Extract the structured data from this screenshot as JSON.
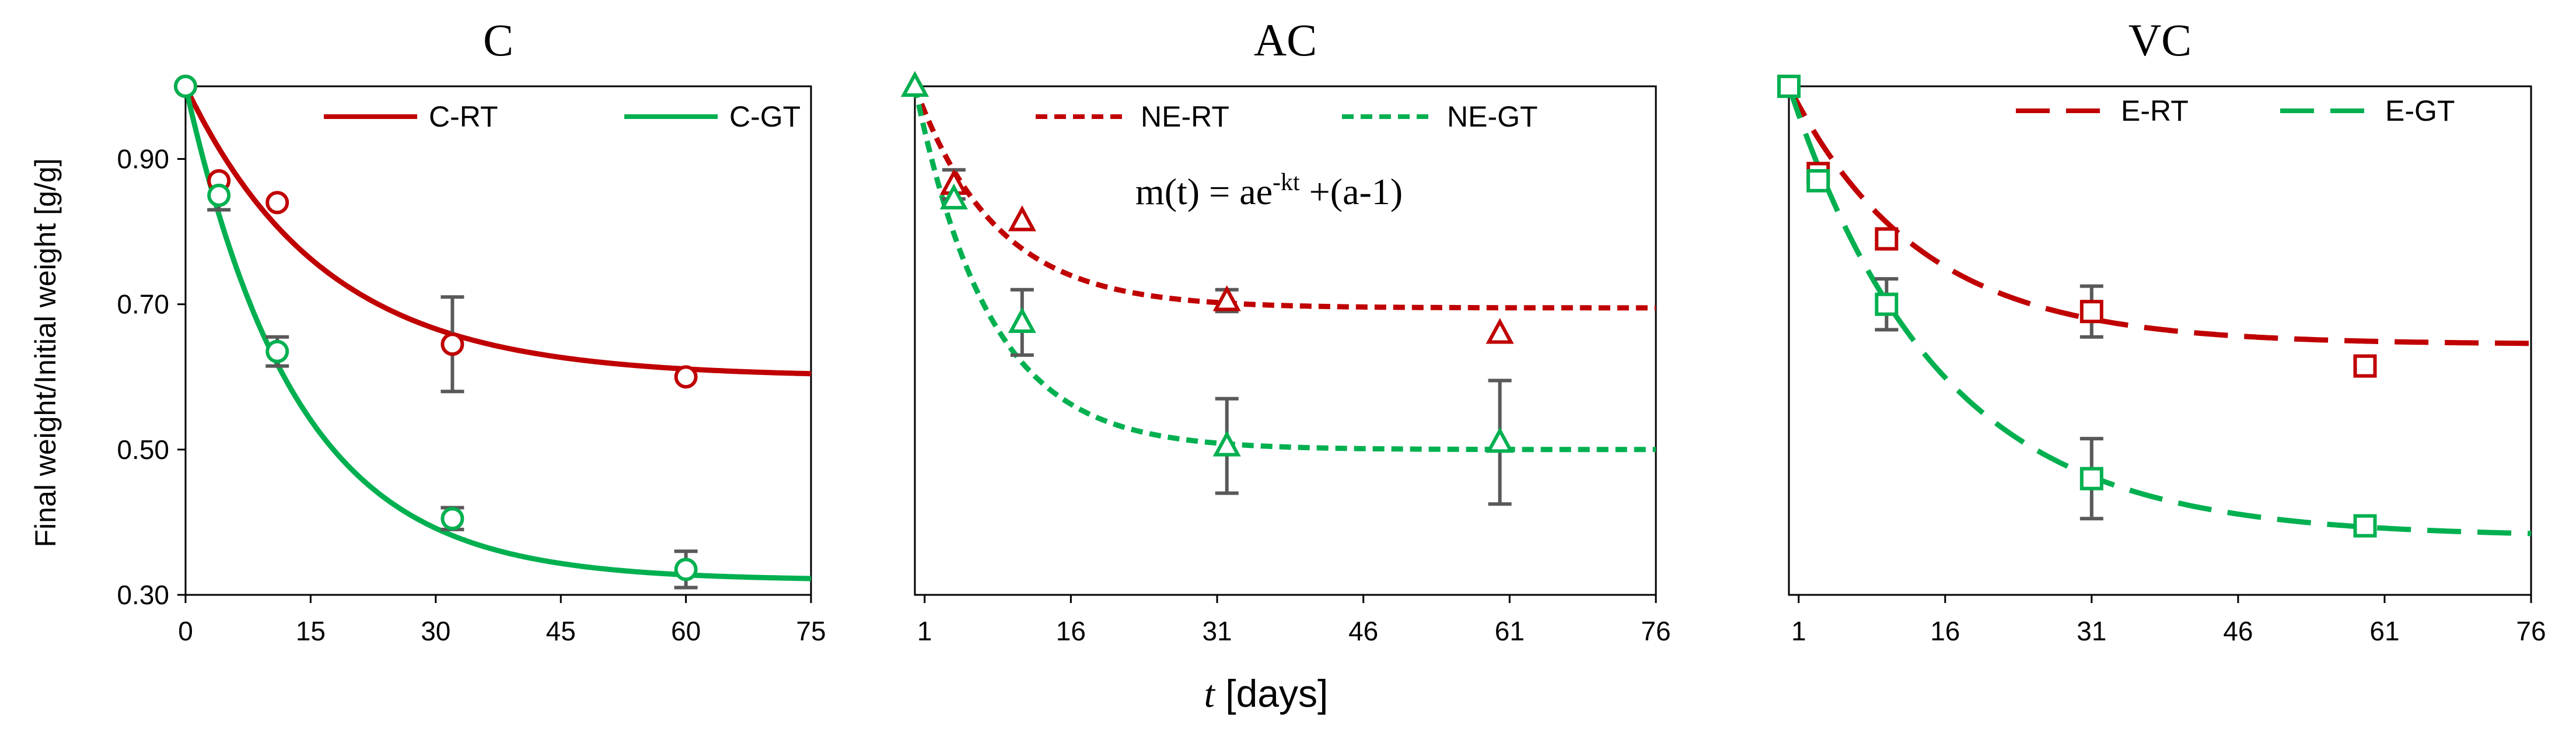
{
  "figure": {
    "ylabel": "Final weight/Initial weight [g/g]",
    "xlabel_italic": "t",
    "xlabel_rest": " [days]"
  },
  "chart_data": [
    {
      "type": "scatter",
      "title": "C",
      "xlim": [
        0,
        75
      ],
      "ylim": [
        0.3,
        1.0
      ],
      "xticks": [
        0,
        15,
        30,
        45,
        60,
        75
      ],
      "yticks": [
        0.3,
        0.5,
        0.7,
        0.9
      ],
      "ytick_labels": [
        "0.30",
        "0.50",
        "0.70",
        "0.90"
      ],
      "marker": "circle",
      "line_style": "solid",
      "legend": [
        "C-RT",
        "C-GT"
      ],
      "series": [
        {
          "name": "C-RT",
          "color": "#c00000",
          "x": [
            0,
            4,
            11,
            32,
            60
          ],
          "y": [
            1.0,
            0.87,
            0.84,
            0.645,
            0.6
          ],
          "err": [
            0,
            0,
            0,
            0.065,
            0
          ],
          "fit": {
            "a": 0.4,
            "k": 0.06
          }
        },
        {
          "name": "C-GT",
          "color": "#00b050",
          "x": [
            0,
            4,
            11,
            32,
            60
          ],
          "y": [
            1.0,
            0.85,
            0.635,
            0.405,
            0.335
          ],
          "err": [
            0,
            0.02,
            0.02,
            0.015,
            0.025
          ],
          "fit": {
            "a": 0.68,
            "k": 0.075
          }
        }
      ]
    },
    {
      "type": "scatter",
      "title": "AC",
      "xlim": [
        0,
        76
      ],
      "ylim": [
        0.3,
        1.0
      ],
      "xticks": [
        1,
        16,
        31,
        46,
        61,
        76
      ],
      "yticks": [],
      "ytick_labels": [],
      "marker": "triangle",
      "line_style": "dotted",
      "legend": [
        "NE-RT",
        "NE-GT"
      ],
      "equation": "m(t) = ae",
      "equation_sup": "-kt",
      "equation_tail": " +(a-1)",
      "series": [
        {
          "name": "NE-RT",
          "color": "#c00000",
          "x": [
            0,
            4,
            11,
            32,
            60
          ],
          "y": [
            1.0,
            0.865,
            0.815,
            0.705,
            0.66
          ],
          "err": [
            0,
            0.02,
            0,
            0.015,
            0
          ],
          "fit": {
            "a": 0.305,
            "k": 0.12
          }
        },
        {
          "name": "NE-GT",
          "color": "#00b050",
          "x": [
            0,
            4,
            11,
            32,
            60
          ],
          "y": [
            1.0,
            0.845,
            0.675,
            0.505,
            0.51
          ],
          "err": [
            0,
            0,
            0.045,
            0.065,
            0.085
          ],
          "fit": {
            "a": 0.5,
            "k": 0.13
          }
        }
      ]
    },
    {
      "type": "scatter",
      "title": "VC",
      "xlim": [
        0,
        76
      ],
      "ylim": [
        0.3,
        1.0
      ],
      "xticks": [
        1,
        16,
        31,
        46,
        61,
        76
      ],
      "yticks": [],
      "ytick_labels": [],
      "marker": "square",
      "line_style": "dashed",
      "legend": [
        "E-RT",
        "E-GT"
      ],
      "series": [
        {
          "name": "E-RT",
          "color": "#c00000",
          "x": [
            0,
            3,
            10,
            31,
            59
          ],
          "y": [
            1.0,
            0.88,
            0.79,
            0.69,
            0.615
          ],
          "err": [
            0,
            0,
            0,
            0.035,
            0
          ],
          "fit": {
            "a": 0.355,
            "k": 0.075
          }
        },
        {
          "name": "E-GT",
          "color": "#00b050",
          "x": [
            0,
            3,
            10,
            31,
            59
          ],
          "y": [
            1.0,
            0.87,
            0.7,
            0.46,
            0.395
          ],
          "err": [
            0,
            0,
            0.035,
            0.055,
            0
          ],
          "fit": {
            "a": 0.62,
            "k": 0.065
          }
        }
      ]
    }
  ]
}
